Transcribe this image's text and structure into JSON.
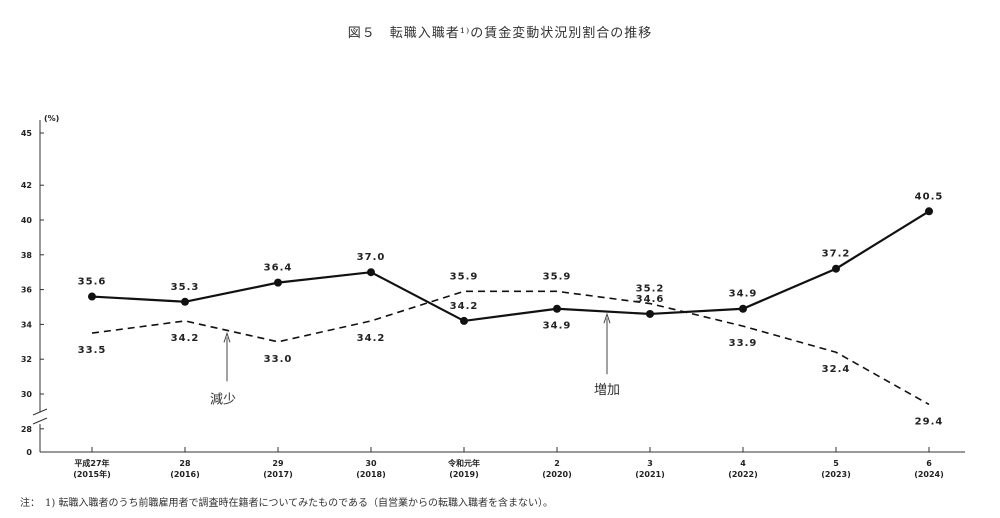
{
  "chart_data": {
    "type": "line",
    "title": "図５　転職入職者¹⁾の賃金変動状況別割合の推移",
    "ylabel": "(%)",
    "ylim": [
      28,
      45
    ],
    "yticks": [
      28,
      30,
      32,
      34,
      36,
      38,
      40,
      42
    ],
    "ytick_zero": "0",
    "categories": [
      [
        "平成27年",
        "(2015年)"
      ],
      [
        "28",
        "(2016)"
      ],
      [
        "29",
        "(2017)"
      ],
      [
        "30",
        "(2018)"
      ],
      [
        "令和元年",
        "(2019)"
      ],
      [
        "2",
        "(2020)"
      ],
      [
        "3",
        "(2021)"
      ],
      [
        "4",
        "(2022)"
      ],
      [
        "5",
        "(2023)"
      ],
      [
        "6",
        "(2024)"
      ]
    ],
    "series": [
      {
        "style": "solid",
        "marker": "circle",
        "values": [
          35.6,
          35.3,
          36.4,
          37.0,
          34.2,
          34.9,
          34.6,
          34.9,
          37.2,
          40.5
        ],
        "labels": [
          "35.6",
          "35.3",
          "36.4",
          "37.0",
          "34.2",
          "34.9",
          "34.6",
          "34.9",
          "37.2",
          "40.5"
        ]
      },
      {
        "style": "dashed",
        "marker": "none",
        "values": [
          33.5,
          34.2,
          33.0,
          34.2,
          35.9,
          35.9,
          35.2,
          33.9,
          32.4,
          29.4
        ],
        "labels": [
          "33.5",
          "34.2",
          "33.0",
          "34.2",
          "35.9",
          "35.9",
          "35.2",
          "33.9",
          "32.4",
          "29.4"
        ]
      }
    ],
    "annotations": [
      {
        "text": "減少",
        "target_index": 1,
        "series": 1
      },
      {
        "text": "増加",
        "target_index": 6,
        "series": 0
      }
    ],
    "grid": false
  },
  "footnote": "注：　1) 転職入職者のうち前職雇用者で調査時在籍者についてみたものである（自営業からの転職入職者を含まない）。"
}
